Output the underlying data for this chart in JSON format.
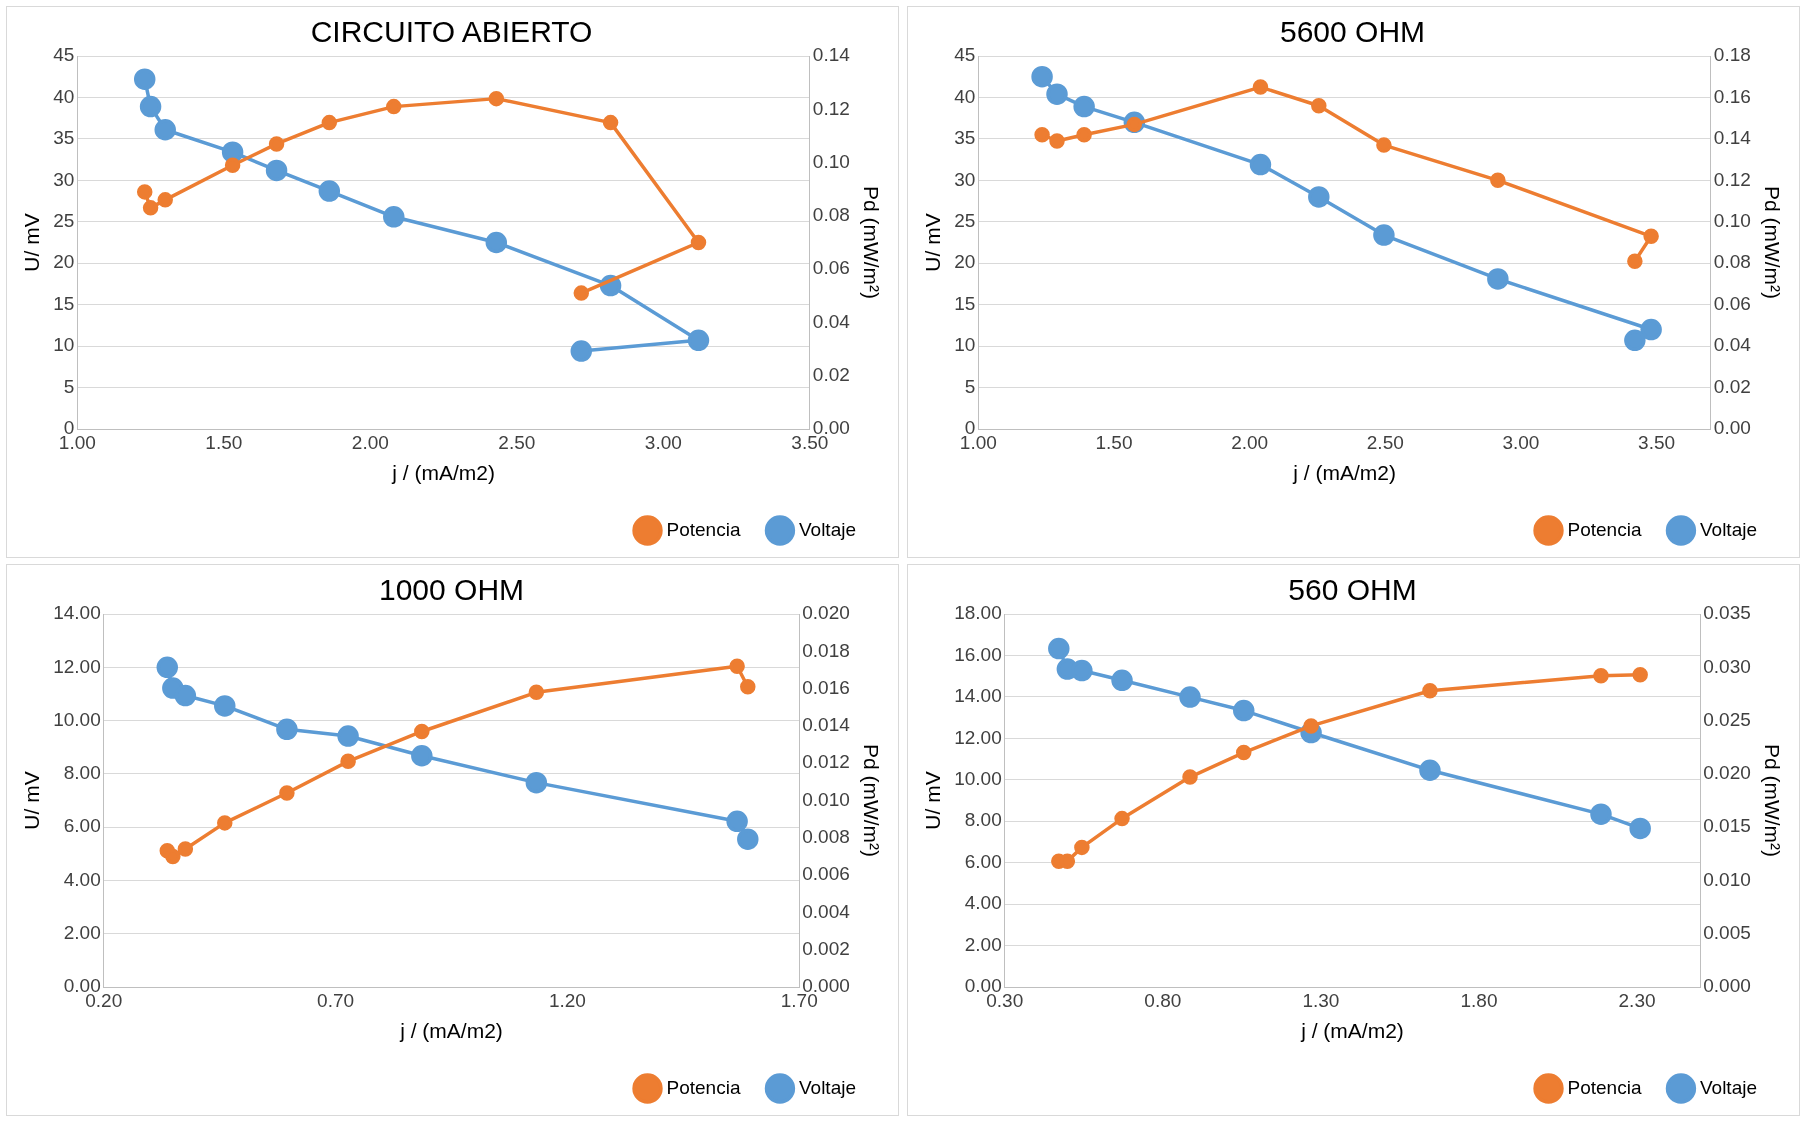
{
  "chart_data": [
    {
      "type": "line",
      "title": "CIRCUITO ABIERTO",
      "xlabel": "j / (mA/m2)",
      "ylabel": "U/ mV",
      "y2label": "Pd (mW/m²)",
      "legend": "bottom right",
      "grid": "y",
      "marker": "circle",
      "line_style": "solid",
      "xlim": [
        1,
        3.5
      ],
      "xticks": [
        {
          "value": 1,
          "label": "1.00"
        },
        {
          "value": 1.5,
          "label": "1.50"
        },
        {
          "value": 2,
          "label": "2.00"
        },
        {
          "value": 2.5,
          "label": "2.50"
        },
        {
          "value": 3,
          "label": "3.00"
        },
        {
          "value": 3.5,
          "label": "3.50"
        }
      ],
      "ylim": [
        0,
        45
      ],
      "yticks": [
        0,
        5,
        10,
        15,
        20,
        25,
        30,
        35,
        40,
        45
      ],
      "y2lim": [
        0,
        0.14
      ],
      "y2ticks": [
        {
          "value": 0,
          "label": "0.00"
        },
        0.02,
        0.04,
        0.06,
        0.08,
        {
          "value": 0.1,
          "label": "0.10"
        },
        0.12,
        0.14
      ],
      "series": [
        {
          "name": "Voltaje",
          "color": "#5b9bd5",
          "axis": "y",
          "x": [
            1.23,
            1.25,
            1.3,
            1.53,
            1.68,
            1.86,
            2.08,
            2.43,
            2.82,
            3.12,
            2.72
          ],
          "values": [
            42.2,
            38.9,
            36.1,
            33.4,
            31.2,
            28.7,
            25.6,
            22.5,
            17.3,
            10.7,
            9.4
          ]
        },
        {
          "name": "Potencia",
          "color": "#ed7d31",
          "axis": "y2",
          "x": [
            1.23,
            1.25,
            1.3,
            1.53,
            1.68,
            1.86,
            2.08,
            2.43,
            2.82,
            3.12,
            2.72
          ],
          "values": [
            0.089,
            0.083,
            0.086,
            0.099,
            0.107,
            0.115,
            0.121,
            0.124,
            0.115,
            0.07,
            0.051
          ]
        }
      ]
    },
    {
      "type": "line",
      "title": "5600 OHM",
      "xlabel": "j / (mA/m2)",
      "ylabel": "U/ mV",
      "y2label": "Pd (mW/m²)",
      "legend": "bottom right",
      "grid": "y",
      "marker": "circle",
      "line_style": "solid",
      "xlim": [
        1,
        3.7
      ],
      "xticks": [
        {
          "value": 1,
          "label": "1.00"
        },
        {
          "value": 1.5,
          "label": "1.50"
        },
        {
          "value": 2,
          "label": "2.00"
        },
        {
          "value": 2.5,
          "label": "2.50"
        },
        {
          "value": 3,
          "label": "3.00"
        },
        {
          "value": 3.5,
          "label": "3.50"
        }
      ],
      "ylim": [
        0,
        45
      ],
      "yticks": [
        0,
        5,
        10,
        15,
        20,
        25,
        30,
        35,
        40,
        45
      ],
      "y2lim": [
        0,
        0.18
      ],
      "y2ticks": [
        {
          "value": 0,
          "label": "0.00"
        },
        0.02,
        0.04,
        0.06,
        0.08,
        {
          "value": 0.1,
          "label": "0.10"
        },
        0.12,
        0.14,
        0.16,
        0.18
      ],
      "series": [
        {
          "name": "Voltaje",
          "color": "#5b9bd5",
          "axis": "y",
          "x": [
            1.235,
            1.29,
            1.39,
            1.575,
            2.04,
            2.255,
            2.495,
            2.915,
            3.48,
            3.42
          ],
          "values": [
            42.5,
            40.4,
            38.9,
            37.0,
            31.9,
            28.0,
            23.4,
            18.1,
            12.0,
            10.7
          ]
        },
        {
          "name": "Potencia",
          "color": "#ed7d31",
          "axis": "y2",
          "x": [
            1.235,
            1.29,
            1.39,
            1.575,
            2.04,
            2.255,
            2.495,
            2.915,
            3.48,
            3.42
          ],
          "values": [
            0.142,
            0.139,
            0.142,
            0.147,
            0.165,
            0.156,
            0.137,
            0.12,
            0.093,
            0.081
          ]
        }
      ]
    },
    {
      "type": "line",
      "title": "1000 OHM",
      "xlabel": "j / (mA/m2)",
      "ylabel": "U/ mV",
      "y2label": "Pd (mW/m²)",
      "legend": "bottom right",
      "grid": "y",
      "marker": "circle",
      "line_style": "solid",
      "xlim": [
        0.2,
        1.7
      ],
      "xticks": [
        {
          "value": 0.2,
          "label": "0.20"
        },
        {
          "value": 0.7,
          "label": "0.70"
        },
        {
          "value": 1.2,
          "label": "1.20"
        },
        {
          "value": 1.7,
          "label": "1.70"
        }
      ],
      "ylim": [
        0,
        14
      ],
      "yticks": [
        {
          "value": 0,
          "label": "0.00"
        },
        {
          "value": 2,
          "label": "2.00"
        },
        {
          "value": 4,
          "label": "4.00"
        },
        {
          "value": 6,
          "label": "6.00"
        },
        {
          "value": 8,
          "label": "8.00"
        },
        {
          "value": 10,
          "label": "10.00"
        },
        {
          "value": 12,
          "label": "12.00"
        },
        {
          "value": 14,
          "label": "14.00"
        }
      ],
      "y2lim": [
        0,
        0.02
      ],
      "y2ticks": [
        {
          "value": 0,
          "label": "0.000"
        },
        0.002,
        0.004,
        0.006,
        0.008,
        {
          "value": 0.01,
          "label": "0.010"
        },
        0.012,
        0.014,
        0.016,
        0.018,
        {
          "value": 0.02,
          "label": "0.020"
        }
      ],
      "series": [
        {
          "name": "Voltaje",
          "color": "#5b9bd5",
          "axis": "y",
          "x": [
            0.337,
            0.349,
            0.376,
            0.461,
            0.595,
            0.727,
            0.886,
            1.133,
            1.566,
            1.589
          ],
          "values": [
            12.0,
            11.22,
            10.94,
            10.55,
            9.67,
            9.42,
            8.68,
            7.67,
            6.22,
            5.55
          ]
        },
        {
          "name": "Potencia",
          "color": "#ed7d31",
          "axis": "y2",
          "x": [
            0.337,
            0.349,
            0.376,
            0.461,
            0.595,
            0.727,
            0.886,
            1.133,
            1.566,
            1.589
          ],
          "values": [
            0.0073,
            0.007,
            0.0074,
            0.0088,
            0.0104,
            0.0121,
            0.0137,
            0.0158,
            0.0172,
            0.0161
          ]
        }
      ]
    },
    {
      "type": "line",
      "title": "560 OHM",
      "xlabel": "j / (mA/m2)",
      "ylabel": "U/ mV",
      "y2label": "Pd (mW/m²)",
      "legend": "bottom right",
      "grid": "y",
      "marker": "circle",
      "line_style": "solid",
      "xlim": [
        0.3,
        2.5
      ],
      "xticks": [
        {
          "value": 0.3,
          "label": "0.30"
        },
        {
          "value": 0.8,
          "label": "0.80"
        },
        {
          "value": 1.3,
          "label": "1.30"
        },
        {
          "value": 1.8,
          "label": "1.80"
        },
        {
          "value": 2.3,
          "label": "2.30"
        }
      ],
      "ylim": [
        0,
        18
      ],
      "yticks": [
        {
          "value": 0,
          "label": "0.00"
        },
        {
          "value": 2,
          "label": "2.00"
        },
        {
          "value": 4,
          "label": "4.00"
        },
        {
          "value": 6,
          "label": "6.00"
        },
        {
          "value": 8,
          "label": "8.00"
        },
        {
          "value": 10,
          "label": "10.00"
        },
        {
          "value": 12,
          "label": "12.00"
        },
        {
          "value": 14,
          "label": "14.00"
        },
        {
          "value": 16,
          "label": "16.00"
        },
        {
          "value": 18,
          "label": "18.00"
        }
      ],
      "y2lim": [
        0,
        0.035
      ],
      "y2ticks": [
        {
          "value": 0,
          "label": "0.000"
        },
        0.005,
        {
          "value": 0.01,
          "label": "0.010"
        },
        0.015,
        {
          "value": 0.02,
          "label": "0.020"
        },
        0.025,
        {
          "value": 0.03,
          "label": "0.030"
        },
        0.035
      ],
      "series": [
        {
          "name": "Voltaje",
          "color": "#5b9bd5",
          "axis": "y",
          "x": [
            0.471,
            0.498,
            0.544,
            0.671,
            0.886,
            1.056,
            1.269,
            1.645,
            2.186,
            2.31
          ],
          "values": [
            16.33,
            15.34,
            15.27,
            14.8,
            13.99,
            13.34,
            12.28,
            10.46,
            8.34,
            7.65
          ]
        },
        {
          "name": "Potencia",
          "color": "#ed7d31",
          "axis": "y2",
          "x": [
            0.471,
            0.498,
            0.544,
            0.671,
            0.886,
            1.056,
            1.269,
            1.645,
            2.186,
            2.31
          ],
          "values": [
            0.0118,
            0.0118,
            0.0131,
            0.0158,
            0.0197,
            0.022,
            0.0245,
            0.0278,
            0.0292,
            0.0293
          ]
        }
      ]
    }
  ]
}
